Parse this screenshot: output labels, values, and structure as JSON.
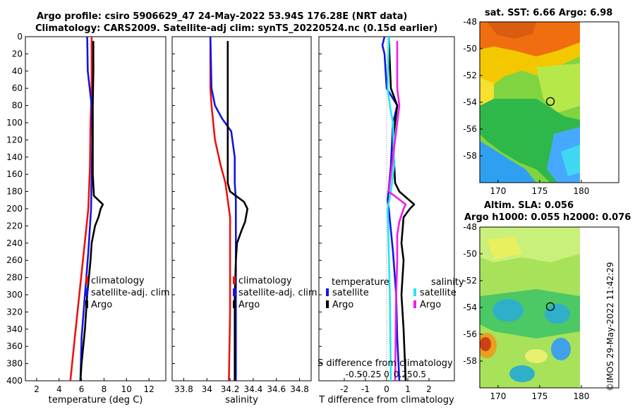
{
  "header": {
    "title_line1": "Argo profile: csiro 5906629_47 24-May-2022 53.94S 176.28E (NRT data)",
    "title_line2": "Climatology: CARS2009. Satellite-adj clim: synTS_20220524.nc (0.15d earlier)"
  },
  "credit": "©IMOS 29-May-2022 11:42:29",
  "colors": {
    "red": "#e8140f",
    "blue": "#1515e0",
    "black": "#000000",
    "cyan": "#22e6f2",
    "magenta": "#ef1ee8",
    "dotted": "#888888"
  },
  "chart_data": [
    {
      "id": "temperature",
      "type": "line",
      "xlabel": "temperature (deg C)",
      "ylabel": "depth",
      "xlim": [
        1,
        13.5
      ],
      "ylim": [
        0,
        400
      ],
      "xticks": [
        2,
        4,
        6,
        8,
        10,
        12
      ],
      "yticks": [
        0,
        20,
        40,
        60,
        80,
        100,
        120,
        140,
        160,
        180,
        200,
        220,
        240,
        260,
        280,
        300,
        320,
        340,
        360,
        380,
        400
      ],
      "legend": [
        "climatology",
        "satellite-adj. clim",
        "Argo"
      ],
      "series": [
        {
          "name": "climatology",
          "color": "#e8140f",
          "depth": [
            0,
            60,
            100,
            150,
            200,
            250,
            300,
            350,
            400
          ],
          "values": [
            6.9,
            6.9,
            6.8,
            6.75,
            6.6,
            6.2,
            5.8,
            5.4,
            5.0
          ]
        },
        {
          "name": "satellite-adj. clim",
          "color": "#1515e0",
          "depth": [
            0,
            40,
            80,
            120,
            160,
            200,
            250,
            300,
            350,
            400
          ],
          "values": [
            6.5,
            6.55,
            6.9,
            6.95,
            6.9,
            6.85,
            6.6,
            6.3,
            6.0,
            5.9
          ]
        },
        {
          "name": "Argo",
          "color": "#000000",
          "depth": [
            5,
            40,
            80,
            120,
            160,
            185,
            195,
            200,
            210,
            220,
            240,
            260,
            300,
            340,
            380,
            400
          ],
          "values": [
            7.05,
            7.05,
            7.0,
            7.0,
            7.0,
            7.1,
            7.9,
            7.7,
            7.5,
            7.2,
            6.9,
            6.8,
            6.5,
            6.3,
            6.0,
            5.9
          ]
        }
      ]
    },
    {
      "id": "salinity",
      "type": "line",
      "xlabel": "salinity",
      "ylabel": "depth",
      "xlim": [
        33.7,
        34.9
      ],
      "ylim": [
        0,
        400
      ],
      "xticks": [
        33.8,
        34.0,
        34.2,
        34.4,
        34.6,
        34.8
      ],
      "xticklabels": [
        "33.8",
        "34",
        "34.2",
        "34.4",
        "34.6",
        "34.8"
      ],
      "legend": [
        "climatology",
        "satellite-adj. clim",
        "Argo"
      ],
      "series": [
        {
          "name": "climatology",
          "color": "#e8140f",
          "depth": [
            0,
            60,
            80,
            120,
            150,
            170,
            190,
            210,
            260,
            320,
            400
          ],
          "values": [
            34.03,
            34.03,
            34.04,
            34.07,
            34.12,
            34.16,
            34.18,
            34.2,
            34.2,
            34.2,
            34.19
          ]
        },
        {
          "name": "satellite-adj. clim",
          "color": "#1515e0",
          "depth": [
            0,
            60,
            80,
            95,
            110,
            140,
            170,
            190,
            230,
            280,
            400
          ],
          "values": [
            34.03,
            34.04,
            34.07,
            34.13,
            34.21,
            34.24,
            34.24,
            34.25,
            34.25,
            34.25,
            34.25
          ]
        },
        {
          "name": "Argo",
          "color": "#000000",
          "depth": [
            5,
            100,
            170,
            180,
            192,
            200,
            215,
            225,
            240,
            260,
            300,
            400
          ],
          "values": [
            34.18,
            34.18,
            34.18,
            34.2,
            34.32,
            34.35,
            34.33,
            34.3,
            34.26,
            34.25,
            34.24,
            34.24
          ]
        }
      ]
    },
    {
      "id": "difference",
      "type": "line",
      "xlabel": "T difference from climatology",
      "secondary_xlabel": "S difference from climatology",
      "ylabel": "depth",
      "xlim": [
        -3.2,
        3.2
      ],
      "ylim": [
        0,
        400
      ],
      "xticks": [
        -2,
        -1,
        0,
        1,
        2
      ],
      "xticklabels": [
        "-2",
        "-1",
        "0",
        "1",
        "2"
      ],
      "secondary_xticklabels": [
        "-0.5",
        "-0.25",
        "0",
        "0.25",
        "0.5"
      ],
      "legend_temperature_title": "temperature",
      "legend_salinity_title": "salinity",
      "legend": [
        "satellite",
        "Argo",
        "satellite",
        "Argo"
      ],
      "series": [
        {
          "name": "temperature satellite",
          "color": "#1515e0",
          "depth": [
            0,
            10,
            20,
            40,
            60,
            80,
            100,
            150,
            190,
            200,
            250,
            300,
            350,
            400
          ],
          "values": [
            -0.1,
            -0.2,
            -0.1,
            -0.05,
            0.0,
            0.5,
            0.3,
            0.2,
            0.05,
            0.1,
            0.3,
            0.45,
            0.5,
            0.6
          ]
        },
        {
          "name": "temperature Argo",
          "color": "#000000",
          "depth": [
            0,
            60,
            80,
            120,
            170,
            180,
            195,
            200,
            210,
            240,
            260,
            300,
            340,
            400
          ],
          "values": [
            0.1,
            0.2,
            0.5,
            0.3,
            0.4,
            0.6,
            1.3,
            1.1,
            0.8,
            0.7,
            0.8,
            0.7,
            0.8,
            0.9
          ]
        },
        {
          "name": "salinity satellite",
          "color": "#22e6f2",
          "depth": [
            0,
            60,
            80,
            100,
            150,
            180,
            200,
            250,
            300,
            400
          ],
          "values": [
            0.1,
            0.05,
            0.15,
            0.3,
            0.35,
            0.2,
            0.05,
            0.1,
            0.15,
            0.2
          ]
        },
        {
          "name": "salinity Argo",
          "color": "#ef1ee8",
          "depth": [
            5,
            60,
            80,
            120,
            160,
            180,
            195,
            200,
            215,
            230,
            260,
            300,
            400
          ],
          "values": [
            0.5,
            0.5,
            0.6,
            0.4,
            0.2,
            0.1,
            0.9,
            0.8,
            0.6,
            0.5,
            0.5,
            0.45,
            0.4
          ]
        }
      ]
    },
    {
      "id": "sst_map",
      "type": "heatmap",
      "title": "sat. SST: 6.66 Argo: 6.98",
      "xlim": [
        167.8,
        184.5
      ],
      "ylim": [
        -60,
        -48
      ],
      "xticks": [
        170,
        175,
        180
      ],
      "yticks": [
        -48,
        -50,
        -52,
        -54,
        -56,
        -58
      ],
      "marker": {
        "lon": 176.28,
        "lat": -53.94
      }
    },
    {
      "id": "sla_map",
      "type": "heatmap",
      "title_line1": "Altim. SLA: 0.056",
      "title_line2": "Argo h1000: 0.055 h2000: 0.076",
      "xlim": [
        167.8,
        184.5
      ],
      "ylim": [
        -60,
        -48
      ],
      "xticks": [
        170,
        175,
        180
      ],
      "yticks": [
        -48,
        -50,
        -52,
        -54,
        -56,
        -58
      ],
      "marker": {
        "lon": 176.28,
        "lat": -53.94
      }
    }
  ]
}
